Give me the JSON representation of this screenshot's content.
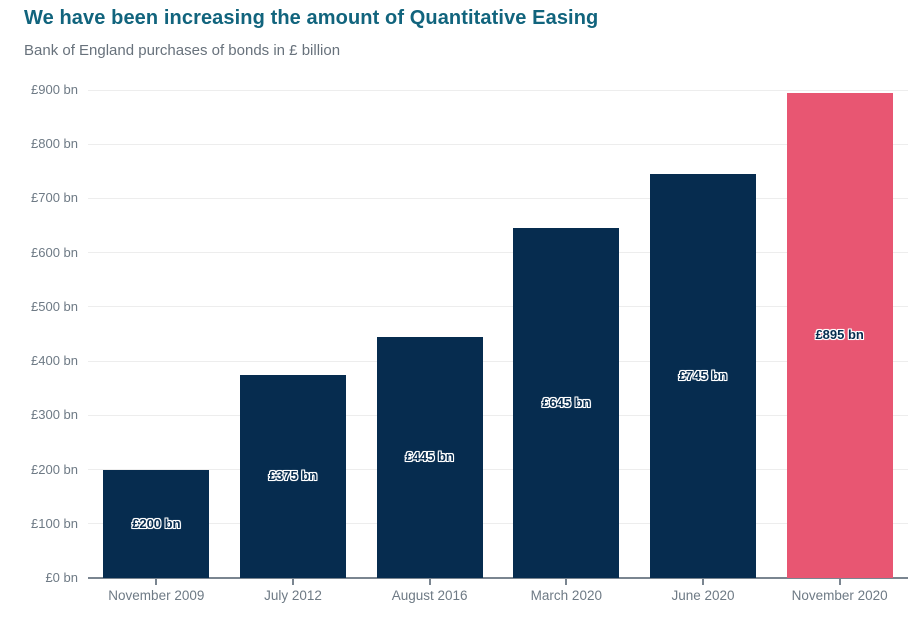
{
  "header": {
    "title": "We have been increasing the amount of Quantitative Easing",
    "subtitle": "Bank of England purchases of bonds in £ billion"
  },
  "colors": {
    "title": "#11647d",
    "subtitle": "#68727c",
    "bar": "#062c4f",
    "highlight_bar": "#e85672",
    "axis_text": "#6e7a85",
    "axis_line": "#7a8590",
    "gridline": "#ededed",
    "bar_label_text": "#062c4f"
  },
  "chart_data": {
    "type": "bar",
    "title": "We have been increasing the amount of Quantitative Easing",
    "subtitle": "Bank of England purchases of bonds in £ billion",
    "categories": [
      "November 2009",
      "July 2012",
      "August 2016",
      "March 2020",
      "June 2020",
      "November 2020"
    ],
    "values": [
      200,
      375,
      445,
      645,
      745,
      895
    ],
    "bar_labels": [
      "£200 bn",
      "£375 bn",
      "£445 bn",
      "£645 bn",
      "£745 bn",
      "£895 bn"
    ],
    "highlight_index": 5,
    "ylim": [
      0,
      900
    ],
    "ytick_step": 100,
    "ytick_labels": [
      "£0 bn",
      "£100 bn",
      "£200 bn",
      "£300 bn",
      "£400 bn",
      "£500 bn",
      "£600 bn",
      "£700 bn",
      "£800 bn",
      "£900 bn"
    ],
    "xlabel": "",
    "ylabel": "",
    "grid": true,
    "legend": "none"
  }
}
